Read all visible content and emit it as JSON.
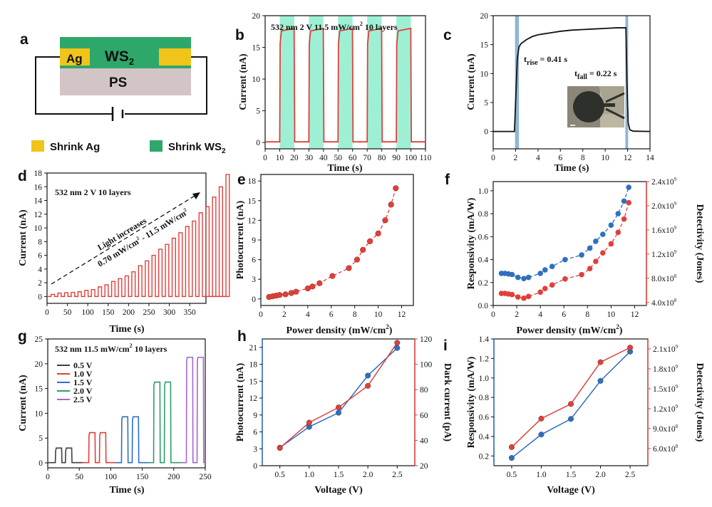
{
  "colors": {
    "red": "#e0403a",
    "blue": "#2f6fc2",
    "green_band": "#9ef0d5",
    "blue_band": "#8fb6d6",
    "ws2": "#2ea86a",
    "ag": "#f0c419",
    "ps": "#d3c4c6",
    "v05": "#404040",
    "v10": "#e0403a",
    "v15": "#2f6fc2",
    "v20": "#2f9e6a",
    "v25": "#a366d4"
  },
  "panels": {
    "a": {
      "label": "a",
      "ws2": "WS",
      "ws2_sub": "2",
      "ag": "Ag",
      "ps": "PS",
      "legend_ag": "Shrink Ag",
      "legend_ws2": "Shrink WS",
      "legend_ws2_sub": "2"
    },
    "b": {
      "label": "b",
      "annotation": "532 nm   2 V   11.5 mW/cm",
      "ann_sup": "2",
      "ann_tail": "  10 layers"
    },
    "c": {
      "label": "c",
      "trise_t": "t",
      "trise_sub": "rise",
      "trise_val": " = 0.41 s",
      "tfall_t": "t",
      "tfall_sub": "fall",
      "tfall_val": " = 0.22 s"
    },
    "d": {
      "label": "d",
      "annotation": "532 nm   2 V   10 layers",
      "arrow_text": "Light increases",
      "range_text": "0.70 mW/cm",
      "range_sup1": "2",
      "range_mid": " - 11.5 mW/cm",
      "range_sup2": "2"
    },
    "e": {
      "label": "e"
    },
    "f": {
      "label": "f"
    },
    "g": {
      "label": "g",
      "annotation": "532 nm   11.5 mW/cm",
      "ann_sup": "2",
      "ann_tail": "  10 layers"
    },
    "h": {
      "label": "h"
    },
    "i": {
      "label": "i"
    }
  },
  "chart_data": [
    {
      "id": "b",
      "type": "line",
      "xlabel": "Time (s)",
      "ylabel": "Current (nA)",
      "xlim": [
        0,
        110
      ],
      "ylim": [
        -1,
        20
      ],
      "xticks": [
        0,
        10,
        20,
        30,
        40,
        50,
        60,
        70,
        80,
        90,
        100,
        110
      ],
      "yticks": [
        0,
        5,
        10,
        15,
        20
      ],
      "pulses": [
        [
          10,
          20
        ],
        [
          30,
          40
        ],
        [
          50,
          60
        ],
        [
          70,
          80
        ],
        [
          90,
          100
        ]
      ],
      "dark": 0.1,
      "plateau": [
        17.6,
        18.0
      ]
    },
    {
      "id": "c",
      "type": "line",
      "xlabel": "Time (s)",
      "ylabel": "Current (nA)",
      "xlim": [
        0,
        14
      ],
      "ylim": [
        -3,
        20
      ],
      "xticks": [
        0,
        2,
        4,
        6,
        8,
        10,
        12,
        14
      ],
      "yticks": [
        0,
        5,
        10,
        15,
        20
      ],
      "x": [
        0,
        1.9,
        2.0,
        2.15,
        2.3,
        2.5,
        3,
        3.5,
        4,
        5,
        6,
        7,
        8,
        9,
        10,
        11,
        11.85,
        11.95,
        12.05,
        12.2,
        12.5,
        14
      ],
      "y": [
        0,
        0,
        5,
        12.5,
        14.6,
        15.2,
        15.9,
        16.4,
        16.7,
        17.0,
        17.3,
        17.5,
        17.6,
        17.7,
        17.8,
        17.9,
        17.9,
        8,
        1.5,
        0.3,
        0.05,
        0
      ],
      "bands": [
        [
          1.95,
          2.3
        ],
        [
          11.8,
          12.05
        ]
      ]
    },
    {
      "id": "d",
      "type": "line",
      "xlabel": "Time (s)",
      "ylabel": "Current (nA)",
      "xlim": [
        0,
        390
      ],
      "ylim": [
        -1,
        18
      ],
      "xticks": [
        0,
        50,
        100,
        150,
        200,
        250,
        300,
        350
      ],
      "yticks": [
        0,
        2,
        4,
        6,
        8,
        10,
        12,
        14,
        16,
        18
      ],
      "pulse_start": 10,
      "pulse_period": 16.5,
      "pulse_width": 8.25,
      "pulse_values": [
        0.3,
        0.5,
        0.55,
        0.6,
        0.7,
        0.9,
        1.0,
        1.4,
        1.7,
        2.2,
        2.6,
        3.0,
        3.6,
        4.5,
        5.2,
        6.0,
        6.9,
        7.6,
        8.5,
        9.3,
        10.2,
        11.0,
        12.2,
        13.1,
        14.5,
        16.0,
        17.8
      ]
    },
    {
      "id": "e",
      "type": "scatter",
      "xlabel": "Power density (mW/cm",
      "xlabel_sup": "2",
      "xlabel_tail": ")",
      "ylabel": "Photocurrent (nA)",
      "xlim": [
        0,
        13
      ],
      "ylim": [
        -1,
        19
      ],
      "xticks": [
        0,
        2,
        4,
        6,
        8,
        10,
        12
      ],
      "yticks": [
        0,
        3,
        6,
        9,
        12,
        15,
        18
      ],
      "x": [
        0.7,
        1.0,
        1.3,
        1.6,
        2.1,
        2.6,
        3.0,
        4.0,
        4.4,
        5.0,
        6.1,
        7.5,
        8.2,
        8.7,
        9.3,
        10.0,
        10.6,
        11.1,
        11.5
      ],
      "y": [
        0.3,
        0.4,
        0.5,
        0.6,
        0.7,
        0.9,
        1.1,
        1.6,
        1.9,
        2.4,
        3.5,
        4.7,
        6.0,
        7.5,
        8.8,
        10.0,
        12.0,
        14.4,
        16.9
      ]
    },
    {
      "id": "f",
      "type": "scatter",
      "xlabel": "Power density (mW/cm",
      "xlabel_sup": "2",
      "xlabel_tail": ")",
      "ylabel": "Responsivity (mA/W)",
      "y2label": "Detectivity (Jones)",
      "xlim": [
        0,
        13
      ],
      "ylim": [
        0,
        1.08
      ],
      "y2lim": [
        0.35,
        2.4
      ],
      "xticks": [
        0,
        2,
        4,
        6,
        8,
        10,
        12
      ],
      "yticks": [
        0.0,
        0.2,
        0.4,
        0.6,
        0.8,
        1.0
      ],
      "y2ticks": [
        0.4,
        0.8,
        1.2,
        1.6,
        2.0,
        2.4
      ],
      "y2ticklabels": [
        "4.0x10",
        "8.0x10",
        "1.2x10",
        "1.6x10",
        "2.0x10",
        "2.4x10"
      ],
      "y2tickexp": [
        "8",
        "8",
        "9",
        "9",
        "9",
        "9"
      ],
      "x": [
        0.7,
        1.0,
        1.3,
        1.6,
        2.1,
        2.6,
        3.0,
        4.0,
        4.4,
        5.0,
        6.1,
        7.5,
        8.2,
        8.7,
        9.3,
        10.0,
        10.6,
        11.1,
        11.5
      ],
      "series": [
        {
          "name": "Responsivity",
          "axis": "left",
          "color": "blue",
          "values": [
            0.28,
            0.28,
            0.275,
            0.27,
            0.245,
            0.235,
            0.245,
            0.28,
            0.31,
            0.34,
            0.4,
            0.44,
            0.5,
            0.56,
            0.62,
            0.7,
            0.8,
            0.91,
            1.03
          ]
        },
        {
          "name": "Detectivity",
          "axis": "right",
          "color": "red",
          "values": [
            0.55,
            0.55,
            0.54,
            0.53,
            0.49,
            0.47,
            0.5,
            0.57,
            0.63,
            0.69,
            0.79,
            0.86,
            0.96,
            1.08,
            1.22,
            1.37,
            1.56,
            1.78,
            2.05
          ]
        }
      ]
    },
    {
      "id": "g",
      "type": "line",
      "xlabel": "Time (s)",
      "ylabel": "Current (nA)",
      "xlim": [
        0,
        250
      ],
      "ylim": [
        -1,
        25
      ],
      "xticks": [
        0,
        50,
        100,
        150,
        200,
        250
      ],
      "yticks": [
        0,
        5,
        10,
        15,
        20,
        25
      ],
      "series": [
        {
          "name": "0.5 V",
          "color": "v05",
          "pulses": [
            [
              12,
              22
            ],
            [
              28,
              38
            ]
          ],
          "value": 3.0
        },
        {
          "name": "1.0 V",
          "color": "v10",
          "pulses": [
            [
              65,
              75
            ],
            [
              82,
              92
            ]
          ],
          "value": 6.1
        },
        {
          "name": "1.5 V",
          "color": "v15",
          "pulses": [
            [
              117,
              127
            ],
            [
              134,
              144
            ]
          ],
          "value": 9.3
        },
        {
          "name": "2.0 V",
          "color": "v20",
          "pulses": [
            [
              168,
              178
            ],
            [
              185,
              195
            ]
          ],
          "value": 16.3
        },
        {
          "name": "2.5 V",
          "color": "v25",
          "pulses": [
            [
              220,
              230
            ],
            [
              237,
              247
            ]
          ],
          "value": 21.3
        }
      ]
    },
    {
      "id": "h",
      "type": "line",
      "xlabel": "Voltage (V)",
      "ylabel": "Photocurrent (nA)",
      "y2label": "Dark current (pA)",
      "xlim": [
        0.2,
        2.8
      ],
      "ylim": [
        0,
        22.5
      ],
      "y2lim": [
        20,
        120
      ],
      "xticks": [
        0.5,
        1.0,
        1.5,
        2.0,
        2.5
      ],
      "yticks": [
        0,
        3,
        6,
        9,
        12,
        15,
        18,
        21
      ],
      "y2ticks": [
        20,
        40,
        60,
        80,
        100,
        120
      ],
      "x": [
        0.5,
        1.0,
        1.5,
        2.0,
        2.5
      ],
      "series": [
        {
          "name": "Photocurrent",
          "axis": "left",
          "color": "blue",
          "values": [
            3.2,
            6.9,
            9.4,
            16.0,
            20.9
          ]
        },
        {
          "name": "Dark current",
          "axis": "right",
          "color": "red",
          "values": [
            34,
            54,
            66,
            83,
            117
          ]
        }
      ]
    },
    {
      "id": "i",
      "type": "line",
      "xlabel": "Voltage (V)",
      "ylabel": "Responsivity (mA/W)",
      "y2label": "Detectivity (Jones)",
      "xlim": [
        0.2,
        2.8
      ],
      "ylim": [
        0.1,
        1.4
      ],
      "y2lim": [
        0.34,
        2.25
      ],
      "xticks": [
        0.5,
        1.0,
        1.5,
        2.0,
        2.5
      ],
      "yticks": [
        0.2,
        0.4,
        0.6,
        0.8,
        1.0,
        1.2,
        1.4
      ],
      "y2ticks": [
        0.6,
        0.9,
        1.2,
        1.5,
        1.8,
        2.1
      ],
      "y2ticklabels": [
        "6.0x10",
        "9.0x10",
        "1.2x10",
        "1.5x10",
        "1.8x10",
        "2.1x10"
      ],
      "y2tickexp": [
        "8",
        "8",
        "9",
        "9",
        "9",
        "9"
      ],
      "x": [
        0.5,
        1.0,
        1.5,
        2.0,
        2.5
      ],
      "series": [
        {
          "name": "Responsivity",
          "axis": "left",
          "color": "blue",
          "values": [
            0.18,
            0.42,
            0.58,
            0.97,
            1.27
          ]
        },
        {
          "name": "Detectivity",
          "axis": "right",
          "color": "red",
          "values": [
            0.62,
            1.05,
            1.27,
            1.9,
            2.12
          ]
        }
      ]
    }
  ]
}
